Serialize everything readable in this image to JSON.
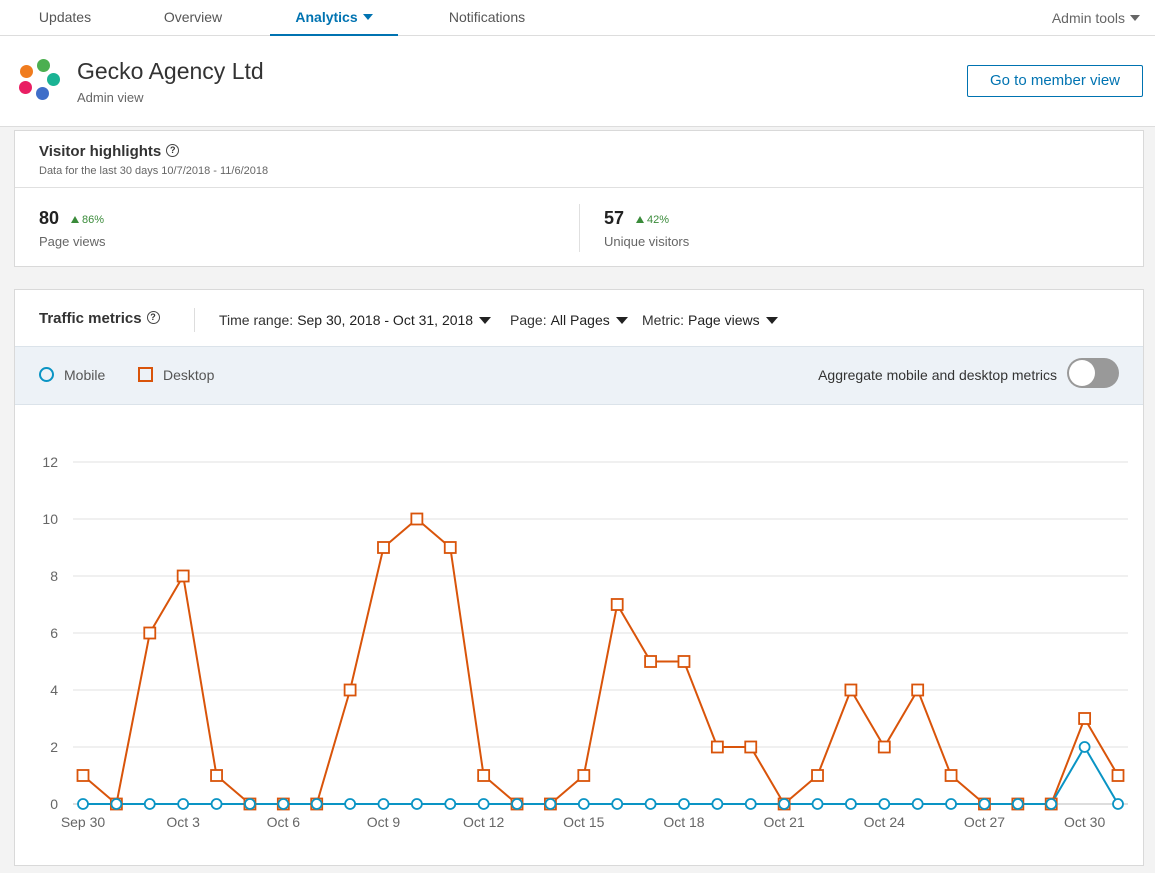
{
  "nav": {
    "tabs": [
      {
        "label": "Updates"
      },
      {
        "label": "Overview"
      },
      {
        "label": "Analytics"
      },
      {
        "label": "Notifications"
      }
    ],
    "admin_tools": "Admin tools"
  },
  "header": {
    "company_name": "Gecko Agency Ltd",
    "subtitle": "Admin view",
    "member_view_button": "Go to member view",
    "logo_colors": [
      "#f07c1e",
      "#4caf50",
      "#e91e63",
      "#1ab394",
      "#3f6ec9"
    ]
  },
  "visitor_highlights": {
    "title": "Visitor highlights",
    "date_range": "Data for the last 30 days 10/7/2018 - 11/6/2018",
    "metrics": [
      {
        "value": "80",
        "delta": "86%",
        "label": "Page views"
      },
      {
        "value": "57",
        "delta": "42%",
        "label": "Unique visitors"
      }
    ]
  },
  "traffic_metrics": {
    "title": "Traffic metrics",
    "time_range_label": "Time range:",
    "time_range_value": "Sep 30, 2018 - Oct 31, 2018",
    "page_label": "Page:",
    "page_value": "All Pages",
    "metric_label": "Metric:",
    "metric_value": "Page views",
    "legend": {
      "mobile": "Mobile",
      "desktop": "Desktop"
    },
    "aggregate_label": "Aggregate mobile and desktop metrics",
    "aggregate_on": false
  },
  "colors": {
    "mobile": "#0a94c4",
    "desktop": "#d9540a",
    "accent": "#0073b1"
  },
  "chart_data": {
    "type": "line",
    "x": [
      "Sep 30",
      "Oct 1",
      "Oct 2",
      "Oct 3",
      "Oct 4",
      "Oct 5",
      "Oct 6",
      "Oct 7",
      "Oct 8",
      "Oct 9",
      "Oct 10",
      "Oct 11",
      "Oct 12",
      "Oct 13",
      "Oct 14",
      "Oct 15",
      "Oct 16",
      "Oct 17",
      "Oct 18",
      "Oct 19",
      "Oct 20",
      "Oct 21",
      "Oct 22",
      "Oct 23",
      "Oct 24",
      "Oct 25",
      "Oct 26",
      "Oct 27",
      "Oct 28",
      "Oct 29",
      "Oct 30",
      "Oct 31"
    ],
    "x_tick_labels": [
      "Sep 30",
      "",
      "",
      "Oct 3",
      "",
      "",
      "Oct 6",
      "",
      "",
      "Oct 9",
      "",
      "",
      "Oct 12",
      "",
      "",
      "Oct 15",
      "",
      "",
      "Oct 18",
      "",
      "",
      "Oct 21",
      "",
      "",
      "Oct 24",
      "",
      "",
      "Oct 27",
      "",
      "",
      "Oct 30",
      ""
    ],
    "series": [
      {
        "name": "Mobile",
        "marker": "circle",
        "values": [
          0,
          0,
          0,
          0,
          0,
          0,
          0,
          0,
          0,
          0,
          0,
          0,
          0,
          0,
          0,
          0,
          0,
          0,
          0,
          0,
          0,
          0,
          0,
          0,
          0,
          0,
          0,
          0,
          0,
          0,
          2,
          0
        ]
      },
      {
        "name": "Desktop",
        "marker": "square",
        "values": [
          1,
          0,
          6,
          8,
          1,
          0,
          0,
          0,
          4,
          9,
          10,
          9,
          1,
          0,
          0,
          1,
          7,
          5,
          5,
          2,
          2,
          0,
          1,
          4,
          2,
          4,
          1,
          0,
          0,
          0,
          3,
          1
        ]
      }
    ],
    "ylim": [
      0,
      12
    ],
    "y_ticks": [
      0,
      2,
      4,
      6,
      8,
      10,
      12
    ],
    "grid": true
  }
}
